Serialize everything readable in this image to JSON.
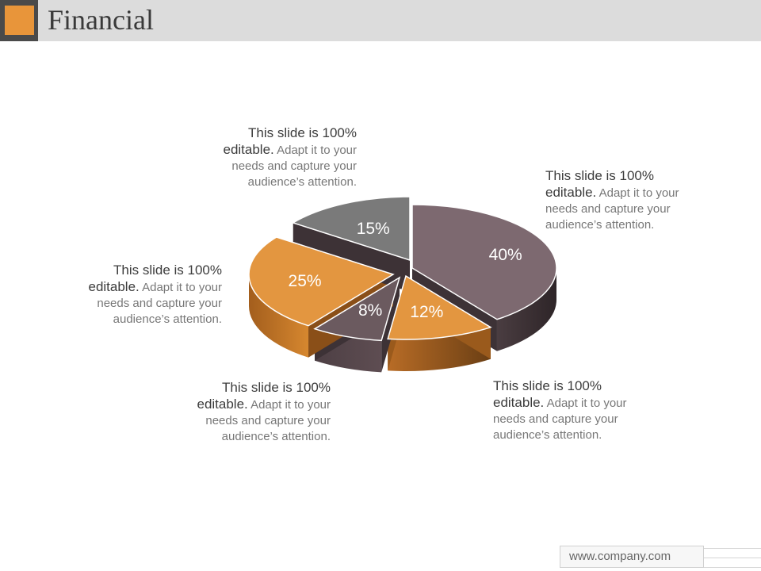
{
  "header": {
    "title": "Financial",
    "accent_color": "#e8953a"
  },
  "chart_data": {
    "type": "pie",
    "style": "3d exploded",
    "slices": [
      {
        "label": "40%",
        "value": 40,
        "color": "#7d6970"
      },
      {
        "label": "12%",
        "value": 12,
        "color": "#e39640"
      },
      {
        "label": "8%",
        "value": 8,
        "color": "#6b5a5f"
      },
      {
        "label": "25%",
        "value": 25,
        "color": "#e39640"
      },
      {
        "label": "15%",
        "value": 15,
        "color": "#7a7a7a"
      }
    ]
  },
  "callouts": [
    {
      "lead": "This slide is 100% editable.",
      "body": " Adapt it to your needs and capture your audience’s attention."
    },
    {
      "lead": "This slide is 100% editable.",
      "body": " Adapt it to your needs and capture your audience’s attention."
    },
    {
      "lead": "This slide is 100% editable.",
      "body": " Adapt it to your needs and capture your audience’s attention."
    },
    {
      "lead": "This slide is 100% editable.",
      "body": " Adapt it to your needs and capture your audience’s attention."
    },
    {
      "lead": "This slide is 100% editable.",
      "body": " Adapt it to your needs and capture your audience’s attention."
    }
  ],
  "footer": {
    "website": "www.company.com"
  }
}
